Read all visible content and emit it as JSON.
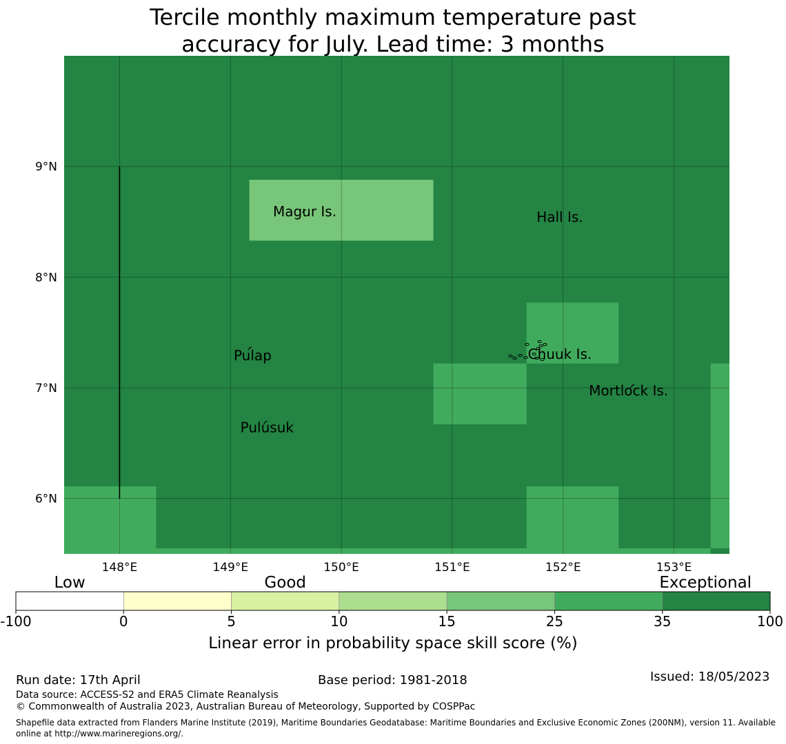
{
  "title": {
    "line1": "Tercile monthly maximum temperature past",
    "line2": "accuracy for July. Lead time: 3 months"
  },
  "map": {
    "background_color": "#238443",
    "lon_ticks": [
      "148°E",
      "149°E",
      "150°E",
      "151°E",
      "152°E",
      "153°E"
    ],
    "lat_ticks": [
      "9°N",
      "8°N",
      "7°N",
      "6°N"
    ],
    "lon_range": [
      147.5,
      153.5
    ],
    "lat_range": [
      5.5,
      10.0
    ],
    "grid_lons": [
      148,
      149,
      150,
      151,
      152,
      153
    ],
    "grid_lats": [
      9,
      8,
      7,
      6
    ],
    "cells": [
      {
        "lon": [
          149.17,
          150.83
        ],
        "lat": [
          8.33,
          8.88
        ],
        "color": "#78c679",
        "category": "15–25"
      },
      {
        "lon": [
          151.67,
          152.5
        ],
        "lat": [
          7.22,
          7.77
        ],
        "color": "#41ab5d",
        "category": "25–35"
      },
      {
        "lon": [
          150.83,
          151.67
        ],
        "lat": [
          6.67,
          7.22
        ],
        "color": "#41ab5d",
        "category": "25–35"
      },
      {
        "lon": [
          153.33,
          153.5
        ],
        "lat": [
          5.55,
          7.22
        ],
        "color": "#41ab5d",
        "category": "25–35"
      },
      {
        "lon": [
          147.5,
          148.33
        ],
        "lat": [
          5.5,
          6.11
        ],
        "color": "#41ab5d",
        "category": "25–35"
      },
      {
        "lon": [
          148.33,
          151.67
        ],
        "lat": [
          5.5,
          5.55
        ],
        "color": "#41ab5d",
        "category": "25–35"
      },
      {
        "lon": [
          151.67,
          152.5
        ],
        "lat": [
          5.5,
          6.11
        ],
        "color": "#41ab5d",
        "category": "25–35"
      },
      {
        "lon": [
          152.5,
          153.33
        ],
        "lat": [
          5.5,
          5.55
        ],
        "color": "#41ab5d",
        "category": "25–35"
      }
    ],
    "boundary_line": {
      "lon": 148.0,
      "lat": [
        6.0,
        9.0
      ]
    },
    "places": [
      {
        "name": "Magur Is.",
        "lon": 149.67,
        "lat": 8.55
      },
      {
        "name": "Hall Is.",
        "lon": 151.97,
        "lat": 8.5
      },
      {
        "name": "Pulap",
        "lon": 149.2,
        "lat": 7.25
      },
      {
        "name": "Chuuk Is.",
        "lon": 151.97,
        "lat": 7.26
      },
      {
        "name": "Mortlock Is.",
        "lon": 152.59,
        "lat": 6.93
      },
      {
        "name": "Pulusuk",
        "lon": 149.33,
        "lat": 6.6
      }
    ],
    "islands": [
      {
        "name": "Magur",
        "lon": 149.67,
        "lat": 8.6
      },
      {
        "name": "Pulap",
        "lon": 149.18,
        "lat": 7.36
      },
      {
        "name": "Pulusuk",
        "lon": 149.32,
        "lat": 6.69
      },
      {
        "name": "Chuuk",
        "lon": 151.8,
        "lat": 7.38
      },
      {
        "name": "Mortlock",
        "lon": 152.63,
        "lat": 7.02
      }
    ]
  },
  "legend": {
    "category_labels": [
      {
        "text": "Low",
        "value_pos": 0.5
      },
      {
        "text": "Good",
        "value_pos": 2.5
      },
      {
        "text": "Exceptional",
        "value_pos": 6.4
      }
    ],
    "ticks": [
      "-100",
      "0",
      "5",
      "10",
      "15",
      "25",
      "35",
      "100"
    ],
    "colors": [
      "#ffffff",
      "#ffffcc",
      "#d9f0a3",
      "#addd8e",
      "#78c679",
      "#41ab5d",
      "#238443"
    ],
    "label": "Linear error in probability space skill score (%)"
  },
  "footer": {
    "run_date": "Run date: 17th April",
    "base_period": "Base period: 1981-2018",
    "issued": "Issued: 18/05/2023",
    "data_source": "Data source: ACCESS-S2 and ERA5 Climate Reanalysis",
    "copyright": "© Commonwealth of Australia 2023, Australian Bureau of Meteorology, Supported by COSPPac",
    "shapefile": "Shapefile data extracted from Flanders Marine Institute (2019), Maritime Boundaries Geodatabase: Maritime Boundaries and Exclusive Economic Zones (200NM), version 11. Available online at http://www.marineregions.org/."
  }
}
